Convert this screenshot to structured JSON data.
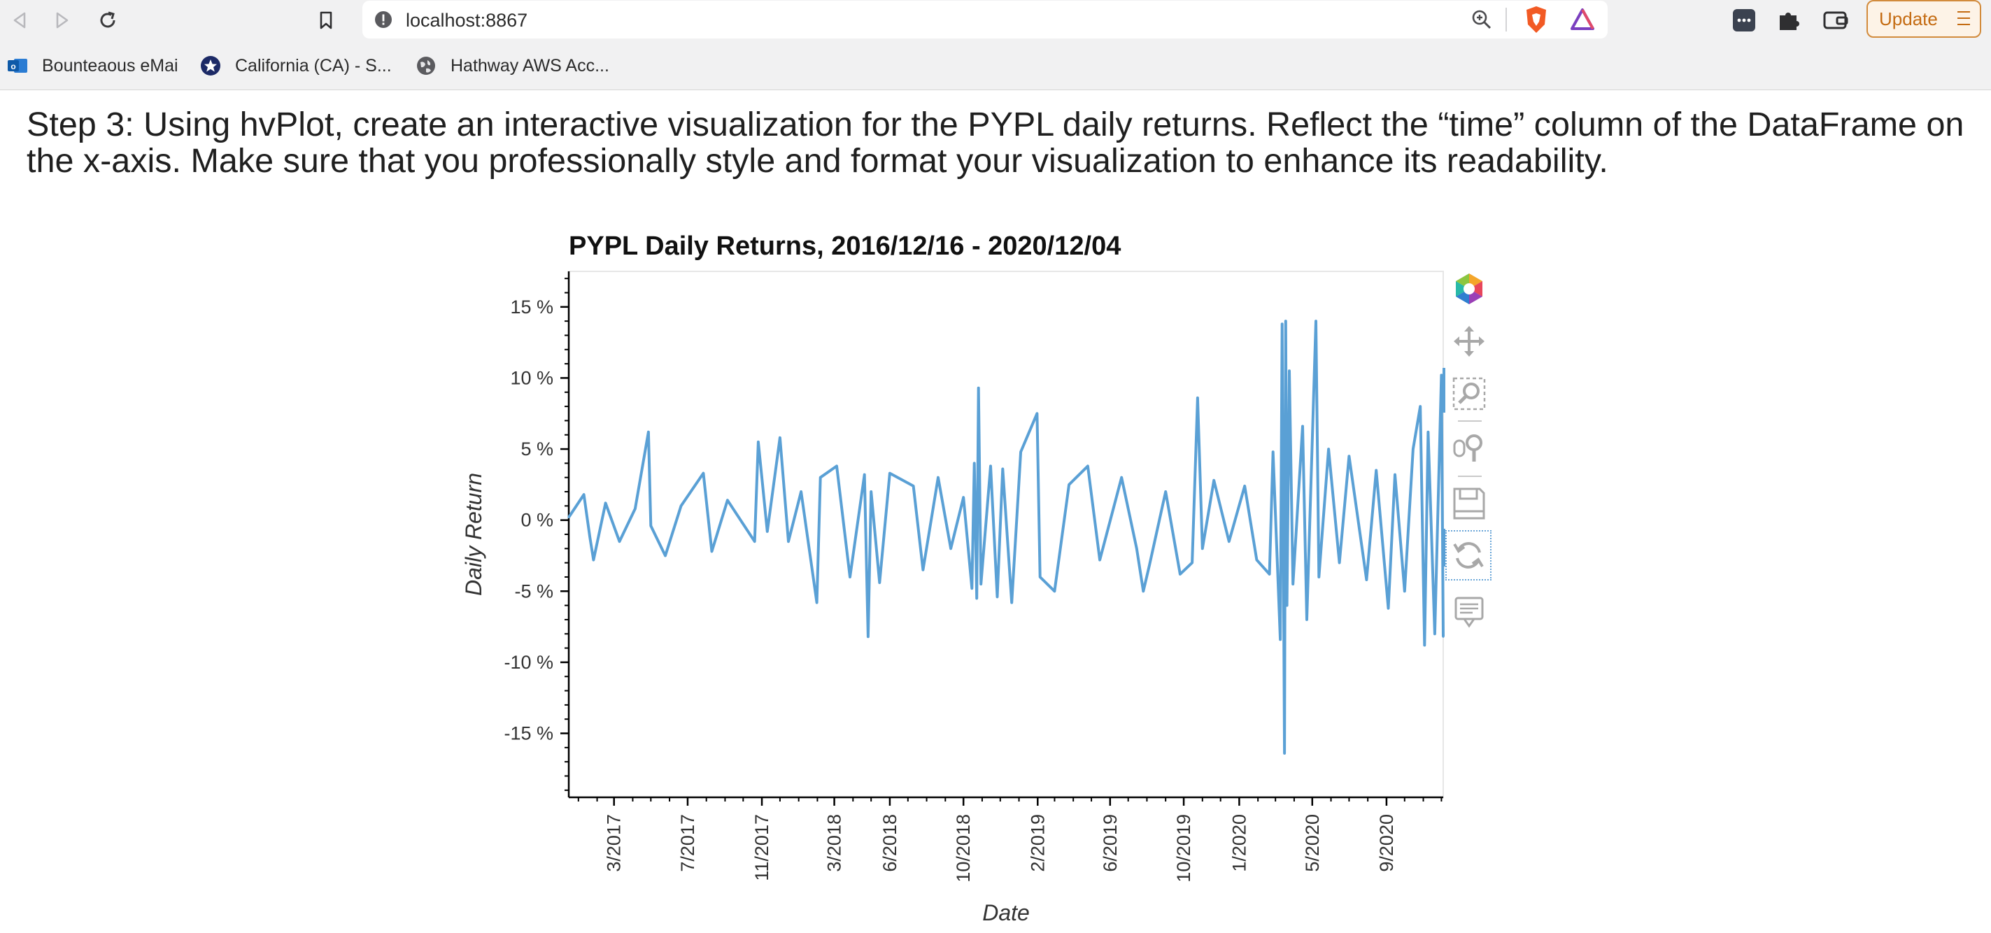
{
  "browser": {
    "url": "localhost:8867",
    "update_label": "Update",
    "bookmarks": [
      {
        "label": "Bounteaous eMai",
        "icon": "outlook-icon"
      },
      {
        "label": "California (CA) - S...",
        "icon": "star-badge-icon"
      },
      {
        "label": "Hathway AWS Acc...",
        "icon": "globe-icon"
      }
    ]
  },
  "content": {
    "heading": "Step 3: Using hvPlot, create an interactive visualization for the PYPL daily returns. Reflect the “time” column of the DataFrame on the x-axis. Make sure that you professionally style and format your visualization to enhance its readability."
  },
  "chart_data": {
    "type": "line",
    "title": "PYPL Daily Returns, 2016/12/16 - 2020/12/04",
    "xlabel": "Date",
    "ylabel": "Daily Return",
    "x_range": [
      "2016-12-16",
      "2020-12-04"
    ],
    "ylim": [
      -0.195,
      0.175
    ],
    "y_ticks": [
      {
        "value": 0.15,
        "label": "15 %"
      },
      {
        "value": 0.1,
        "label": "10 %"
      },
      {
        "value": 0.05,
        "label": "5 %"
      },
      {
        "value": 0.0,
        "label": "0 %"
      },
      {
        "value": -0.05,
        "label": "-5 %"
      },
      {
        "value": -0.1,
        "label": "-10 %"
      },
      {
        "value": -0.15,
        "label": "-15 %"
      }
    ],
    "x_ticks": [
      {
        "date": "2017-03-01",
        "label": "3/2017"
      },
      {
        "date": "2017-07-01",
        "label": "7/2017"
      },
      {
        "date": "2017-11-01",
        "label": "11/2017"
      },
      {
        "date": "2018-03-01",
        "label": "3/2018"
      },
      {
        "date": "2018-06-01",
        "label": "6/2018"
      },
      {
        "date": "2018-10-01",
        "label": "10/2018"
      },
      {
        "date": "2019-02-01",
        "label": "2/2019"
      },
      {
        "date": "2019-06-01",
        "label": "6/2019"
      },
      {
        "date": "2019-10-01",
        "label": "10/2019"
      },
      {
        "date": "2020-01-01",
        "label": "1/2020"
      },
      {
        "date": "2020-05-01",
        "label": "5/2020"
      },
      {
        "date": "2020-09-01",
        "label": "9/2020"
      }
    ],
    "series": [
      {
        "color": "#5aa0d5",
        "points": [
          [
            "2016-12-16",
            0.002
          ],
          [
            "2017-01-10",
            0.018
          ],
          [
            "2017-01-20",
            -0.012
          ],
          [
            "2017-01-26",
            -0.028
          ],
          [
            "2017-02-15",
            0.012
          ],
          [
            "2017-03-10",
            -0.015
          ],
          [
            "2017-04-05",
            0.008
          ],
          [
            "2017-04-27",
            0.062
          ],
          [
            "2017-05-01",
            -0.004
          ],
          [
            "2017-05-25",
            -0.025
          ],
          [
            "2017-06-20",
            0.01
          ],
          [
            "2017-07-27",
            0.033
          ],
          [
            "2017-08-10",
            -0.022
          ],
          [
            "2017-09-05",
            0.014
          ],
          [
            "2017-10-20",
            -0.015
          ],
          [
            "2017-10-26",
            0.055
          ],
          [
            "2017-11-10",
            -0.008
          ],
          [
            "2017-12-01",
            0.058
          ],
          [
            "2017-12-15",
            -0.015
          ],
          [
            "2018-01-05",
            0.02
          ],
          [
            "2018-01-31",
            -0.058
          ],
          [
            "2018-02-06",
            0.03
          ],
          [
            "2018-03-05",
            0.038
          ],
          [
            "2018-03-27",
            -0.04
          ],
          [
            "2018-04-20",
            0.032
          ],
          [
            "2018-04-26",
            -0.082
          ],
          [
            "2018-05-01",
            0.02
          ],
          [
            "2018-05-15",
            -0.044
          ],
          [
            "2018-06-01",
            0.033
          ],
          [
            "2018-07-10",
            0.024
          ],
          [
            "2018-07-26",
            -0.035
          ],
          [
            "2018-08-20",
            0.03
          ],
          [
            "2018-09-10",
            -0.02
          ],
          [
            "2018-10-01",
            0.016
          ],
          [
            "2018-10-15",
            -0.048
          ],
          [
            "2018-10-19",
            0.04
          ],
          [
            "2018-10-23",
            -0.055
          ],
          [
            "2018-10-26",
            0.093
          ],
          [
            "2018-10-30",
            -0.045
          ],
          [
            "2018-11-15",
            0.038
          ],
          [
            "2018-11-26",
            -0.054
          ],
          [
            "2018-12-05",
            0.036
          ],
          [
            "2018-12-20",
            -0.058
          ],
          [
            "2019-01-04",
            0.048
          ],
          [
            "2019-01-31",
            0.075
          ],
          [
            "2019-02-05",
            -0.04
          ],
          [
            "2019-03-01",
            -0.05
          ],
          [
            "2019-03-25",
            0.025
          ],
          [
            "2019-04-25",
            0.038
          ],
          [
            "2019-05-15",
            -0.028
          ],
          [
            "2019-06-20",
            0.03
          ],
          [
            "2019-07-15",
            -0.02
          ],
          [
            "2019-07-26",
            -0.05
          ],
          [
            "2019-08-05",
            -0.032
          ],
          [
            "2019-09-01",
            0.02
          ],
          [
            "2019-09-25",
            -0.038
          ],
          [
            "2019-10-15",
            -0.03
          ],
          [
            "2019-10-24",
            0.086
          ],
          [
            "2019-11-01",
            -0.02
          ],
          [
            "2019-11-20",
            0.028
          ],
          [
            "2019-12-15",
            -0.015
          ],
          [
            "2020-01-10",
            0.024
          ],
          [
            "2020-01-30",
            -0.028
          ],
          [
            "2020-02-20",
            -0.038
          ],
          [
            "2020-02-26",
            0.048
          ],
          [
            "2020-03-09",
            -0.084
          ],
          [
            "2020-03-12",
            0.138
          ],
          [
            "2020-03-16",
            -0.164
          ],
          [
            "2020-03-18",
            0.14
          ],
          [
            "2020-03-20",
            -0.06
          ],
          [
            "2020-03-24",
            0.105
          ],
          [
            "2020-03-30",
            -0.045
          ],
          [
            "2020-04-15",
            0.066
          ],
          [
            "2020-04-22",
            -0.07
          ],
          [
            "2020-05-07",
            0.14
          ],
          [
            "2020-05-12",
            -0.04
          ],
          [
            "2020-05-28",
            0.05
          ],
          [
            "2020-06-15",
            -0.03
          ],
          [
            "2020-07-01",
            0.045
          ],
          [
            "2020-07-30",
            -0.042
          ],
          [
            "2020-08-15",
            0.035
          ],
          [
            "2020-09-04",
            -0.062
          ],
          [
            "2020-09-15",
            0.032
          ],
          [
            "2020-10-01",
            -0.05
          ],
          [
            "2020-10-15",
            0.05
          ],
          [
            "2020-10-27",
            0.08
          ],
          [
            "2020-11-03",
            -0.088
          ],
          [
            "2020-11-09",
            0.062
          ],
          [
            "2020-11-20",
            -0.08
          ],
          [
            "2020-12-01",
            0.102
          ],
          [
            "2020-12-04",
            -0.082
          ]
        ]
      }
    ]
  }
}
